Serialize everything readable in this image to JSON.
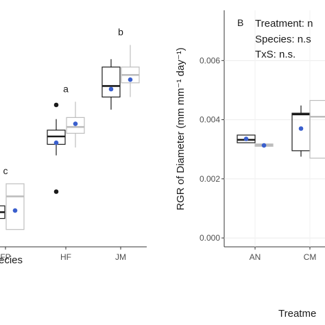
{
  "chart_data": [
    {
      "type": "box",
      "panel": "A",
      "xlabel": "Species",
      "xlabel_visible_fragment": "ecies",
      "categories": [
        "FP",
        "HF",
        "JM"
      ],
      "category_labels_visible": [
        "FP",
        "HF",
        "JM"
      ],
      "series_colors": {
        "dark": "#1a1a1a",
        "light": "#bdbdbd"
      },
      "mean_color": "#3a5fcd",
      "significance_letters": [
        {
          "category": "FP",
          "text": "c"
        },
        {
          "category": "HF",
          "text": "a"
        },
        {
          "category": "JM",
          "text": "b"
        }
      ],
      "boxes": [
        {
          "category": "FP",
          "series": "dark",
          "q1": 0.88,
          "median": 0.92,
          "q3": 0.96,
          "wmin": 0.8,
          "wmax": 1.02,
          "mean": 0.92,
          "outliers": []
        },
        {
          "category": "FP",
          "series": "light",
          "q1": 0.81,
          "median": 1.02,
          "q3": 1.1,
          "wmin": 0.81,
          "wmax": 1.1,
          "mean": 0.93,
          "outliers": []
        },
        {
          "category": "HF",
          "series": "dark",
          "q1": 1.35,
          "median": 1.4,
          "q3": 1.44,
          "wmin": 1.28,
          "wmax": 1.51,
          "mean": 1.36,
          "outliers": [
            1.6,
            1.05
          ]
        },
        {
          "category": "HF",
          "series": "light",
          "q1": 1.42,
          "median": 1.46,
          "q3": 1.52,
          "wmin": 1.33,
          "wmax": 1.62,
          "mean": 1.48,
          "outliers": []
        },
        {
          "category": "JM",
          "series": "dark",
          "q1": 1.65,
          "median": 1.72,
          "q3": 1.84,
          "wmin": 1.57,
          "wmax": 1.89,
          "mean": 1.7,
          "outliers": []
        },
        {
          "category": "JM",
          "series": "light",
          "q1": 1.74,
          "median": 1.79,
          "q3": 1.84,
          "wmin": 1.65,
          "wmax": 1.98,
          "mean": 1.76,
          "outliers": []
        }
      ],
      "ylim": [
        0.7,
        2.2
      ]
    },
    {
      "type": "box",
      "panel": "B",
      "panel_label": "B",
      "ylabel": "RGR of Diameter (mm mm⁻¹ day⁻¹)",
      "xlabel": "Treatment",
      "xlabel_visible_fragment": "Treatme",
      "categories": [
        "AN",
        "CM"
      ],
      "category_labels_visible": [
        "AN",
        "CM"
      ],
      "yticks": [
        0.0,
        0.002,
        0.004,
        0.006
      ],
      "ytick_labels": [
        "0.000",
        "0.002",
        "0.004",
        "0.006"
      ],
      "ylim": [
        -0.0003,
        0.0077
      ],
      "grid": true,
      "stats_text": [
        {
          "label": "Treatment: n.s.",
          "visible": "Treatment: n"
        },
        {
          "label": "Species: n.s.",
          "visible": "Species: n.s"
        },
        {
          "label": "TxS: n.s.",
          "visible": "TxS: n.s."
        }
      ],
      "boxes": [
        {
          "category": "AN",
          "series": "dark",
          "q1": 0.00322,
          "median": 0.00332,
          "q3": 0.00348,
          "wmin": 0.00322,
          "wmax": 0.00348,
          "mean": 0.00335,
          "outliers": []
        },
        {
          "category": "AN",
          "series": "light",
          "q1": 0.0031,
          "median": 0.00314,
          "q3": 0.00318,
          "wmin": 0.0031,
          "wmax": 0.00318,
          "mean": 0.00313,
          "outliers": []
        },
        {
          "category": "CM",
          "series": "dark",
          "q1": 0.00295,
          "median": 0.00418,
          "q3": 0.00422,
          "wmin": 0.00275,
          "wmax": 0.00448,
          "mean": 0.0037,
          "outliers": []
        },
        {
          "category": "CM",
          "series": "light",
          "q1": 0.0027,
          "median": 0.0041,
          "q3": 0.00465,
          "wmin": 0.0027,
          "wmax": 0.00465,
          "mean": null,
          "outliers": []
        }
      ]
    }
  ]
}
